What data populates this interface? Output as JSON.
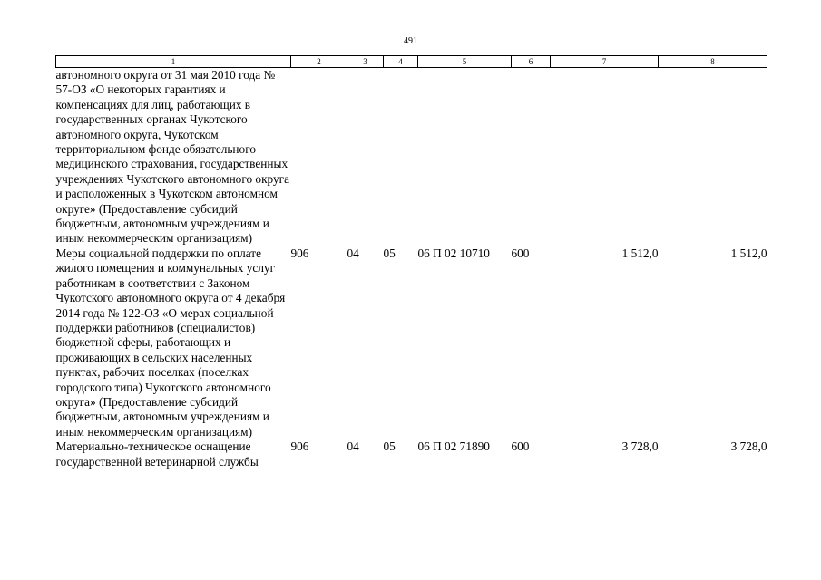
{
  "page": {
    "number": "491"
  },
  "table": {
    "headers": [
      "1",
      "2",
      "3",
      "4",
      "5",
      "6",
      "7",
      "8"
    ],
    "rows": [
      {
        "name": "автономного округа от 31 мая 2010 года № 57-ОЗ «О некоторых гарантиях и компенсациях для лиц, работающих в государственных органах Чукотского автономного округа, Чукотском территориальном фонде обязательного медицинского страхования, государственных учреждениях Чукотского автономного округа и расположенных в Чукотском автономном округе» (Предоставление субсидий бюджетным, автономным учреждениям и иным некоммерческим организациям)",
        "ministry": "",
        "section": "",
        "subsection": "",
        "article": "",
        "expense_type": "",
        "sum_2024": "",
        "sum_2025": ""
      },
      {
        "name": "Меры социальной поддержки по оплате жилого помещения и коммунальных услуг работникам в соответствии с Законом Чукотского автономного округа от 4 декабря 2014 года № 122-ОЗ «О мерах социальной поддержки работников (специалистов) бюджетной сферы, работающих и проживающих в сельских населенных пунктах, рабочих поселках (поселках городского типа) Чукотского автономного округа» (Предоставление субсидий бюджетным, автономным учреждениям и иным некоммерческим организациям)",
        "ministry": "906",
        "section": "04",
        "subsection": "05",
        "article": "06 П 02 10710",
        "expense_type": "600",
        "sum_2024": "1 512,0",
        "sum_2025": "1 512,0"
      },
      {
        "name": "Материально-техническое оснащение государственной ветеринарной службы",
        "ministry": "906",
        "section": "04",
        "subsection": "05",
        "article": "06 П 02 71890",
        "expense_type": "600",
        "sum_2024": "3 728,0",
        "sum_2025": "3 728,0"
      }
    ]
  }
}
